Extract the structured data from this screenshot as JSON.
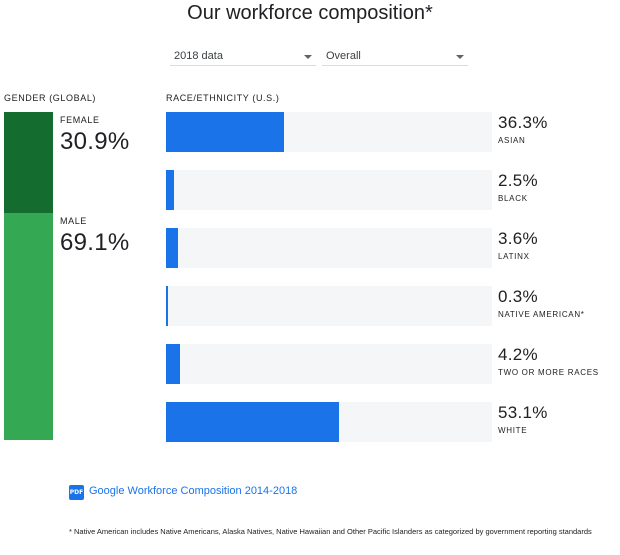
{
  "title": "Our workforce composition*",
  "filters": {
    "year": "2018 data",
    "view": "Overall"
  },
  "chart_data": [
    {
      "type": "bar",
      "title": "GENDER (GLOBAL)",
      "orientation": "stacked-vertical",
      "categories": [
        "FEMALE",
        "MALE"
      ],
      "values": [
        30.9,
        69.1
      ],
      "value_labels": [
        "30.9%",
        "69.1%"
      ],
      "unit": "%",
      "colors": [
        "#146c2e",
        "#34a853"
      ]
    },
    {
      "type": "bar",
      "title": "RACE/ETHNICITY (U.S.)",
      "orientation": "horizontal",
      "categories": [
        "ASIAN",
        "BLACK",
        "LATINX",
        "NATIVE AMERICAN*",
        "TWO OR MORE RACES",
        "WHITE"
      ],
      "values": [
        36.3,
        2.5,
        3.6,
        0.3,
        4.2,
        53.1
      ],
      "value_labels": [
        "36.3%",
        "2.5%",
        "3.6%",
        "0.3%",
        "4.2%",
        "53.1%"
      ],
      "unit": "%",
      "xlim": [
        0,
        100
      ],
      "bar_color": "#1a73e8",
      "track_color": "#f5f6f7"
    }
  ],
  "report_link": {
    "icon": "pdf-icon",
    "icon_text": "PDF",
    "label": "Google Workforce Composition 2014-2018"
  },
  "footnote": "* Native American includes Native Americans, Alaska Natives, Native Hawaiian and Other Pacific Islanders as categorized by government reporting standards"
}
